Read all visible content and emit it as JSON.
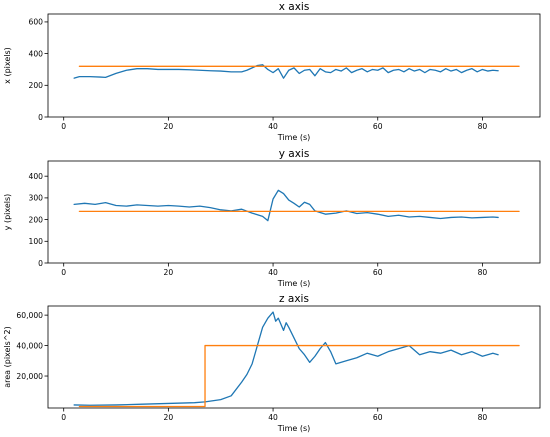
{
  "chart_data": [
    {
      "type": "line",
      "title": "x axis",
      "xlabel": "Time (s)",
      "ylabel": "x (pixels)",
      "xlim": [
        -3,
        91
      ],
      "ylim": [
        0,
        650
      ],
      "xticks": [
        0,
        20,
        40,
        60,
        80
      ],
      "yticks": [
        0,
        200,
        400,
        600
      ],
      "ytick_labels": [
        "0",
        "200",
        "400",
        "600"
      ],
      "grid": false,
      "series": [
        {
          "color": "#1f77b4",
          "x": [
            2,
            3,
            5,
            7,
            8,
            10,
            12,
            14,
            16,
            18,
            20,
            22,
            24,
            26,
            28,
            30,
            32,
            34,
            35,
            36,
            37,
            38,
            39,
            40,
            41,
            42,
            43,
            44,
            45,
            46,
            47,
            48,
            49,
            50,
            51,
            52,
            53,
            54,
            55,
            56,
            57,
            58,
            59,
            60,
            61,
            62,
            63,
            64,
            65,
            66,
            67,
            68,
            69,
            70,
            71,
            72,
            73,
            74,
            75,
            76,
            77,
            78,
            79,
            80,
            81,
            82,
            83
          ],
          "y": [
            245,
            255,
            255,
            252,
            250,
            275,
            295,
            305,
            305,
            300,
            300,
            300,
            298,
            295,
            292,
            290,
            285,
            285,
            295,
            310,
            325,
            330,
            300,
            280,
            305,
            245,
            295,
            310,
            275,
            295,
            300,
            260,
            305,
            285,
            280,
            300,
            290,
            310,
            280,
            295,
            305,
            285,
            300,
            295,
            310,
            280,
            295,
            300,
            285,
            305,
            290,
            300,
            280,
            300,
            295,
            285,
            305,
            290,
            300,
            280,
            295,
            305,
            285,
            300,
            290,
            295,
            292
          ]
        },
        {
          "color": "#ff7f0e",
          "x": [
            3,
            87
          ],
          "y": [
            320,
            320
          ]
        }
      ]
    },
    {
      "type": "line",
      "title": "y axis",
      "xlabel": "Time (s)",
      "ylabel": "y (pixels)",
      "xlim": [
        -3,
        91
      ],
      "ylim": [
        0,
        470
      ],
      "xticks": [
        0,
        20,
        40,
        60,
        80
      ],
      "yticks": [
        0,
        100,
        200,
        300,
        400
      ],
      "ytick_labels": [
        "0",
        "100",
        "200",
        "300",
        "400"
      ],
      "grid": false,
      "series": [
        {
          "color": "#1f77b4",
          "x": [
            2,
            4,
            6,
            8,
            10,
            12,
            14,
            16,
            18,
            20,
            22,
            24,
            26,
            28,
            30,
            32,
            34,
            36,
            38,
            39,
            40,
            41,
            42,
            43,
            44,
            45,
            46,
            47,
            48,
            50,
            52,
            54,
            56,
            58,
            60,
            62,
            64,
            66,
            68,
            70,
            72,
            74,
            76,
            78,
            80,
            82,
            83
          ],
          "y": [
            270,
            275,
            270,
            278,
            265,
            262,
            268,
            265,
            262,
            265,
            262,
            258,
            262,
            255,
            245,
            240,
            248,
            230,
            215,
            195,
            295,
            335,
            320,
            290,
            275,
            258,
            280,
            270,
            240,
            225,
            230,
            240,
            228,
            232,
            225,
            215,
            220,
            212,
            215,
            210,
            205,
            210,
            212,
            208,
            210,
            212,
            210
          ]
        },
        {
          "color": "#ff7f0e",
          "x": [
            3,
            87
          ],
          "y": [
            238,
            238
          ]
        }
      ]
    },
    {
      "type": "line",
      "title": "z axis",
      "xlabel": "Time (s)",
      "ylabel": "area (pixels^2)",
      "xlim": [
        -3,
        91
      ],
      "ylim": [
        -1000,
        66000
      ],
      "xticks": [
        0,
        20,
        40,
        60,
        80
      ],
      "yticks": [
        20000,
        40000,
        60000
      ],
      "ytick_labels": [
        "20,000",
        "40,000",
        "60,000"
      ],
      "grid": false,
      "series": [
        {
          "color": "#1f77b4",
          "x": [
            2,
            5,
            10,
            15,
            20,
            25,
            27,
            30,
            32,
            34,
            35,
            36,
            37,
            38,
            39,
            40,
            40.5,
            41,
            42,
            42.5,
            43,
            44,
            45,
            46,
            47,
            48,
            49,
            50,
            51,
            52,
            54,
            56,
            58,
            60,
            62,
            64,
            66,
            68,
            70,
            72,
            74,
            76,
            78,
            80,
            82,
            83
          ],
          "y": [
            1000,
            800,
            1000,
            1500,
            2000,
            2500,
            3000,
            4500,
            7000,
            16000,
            21000,
            28000,
            40000,
            52000,
            58000,
            62000,
            56000,
            58000,
            50000,
            55000,
            52000,
            45000,
            38000,
            34000,
            29000,
            33000,
            38000,
            42000,
            36000,
            28000,
            30000,
            32000,
            35000,
            33000,
            36000,
            38000,
            40000,
            34000,
            36000,
            35000,
            37000,
            34000,
            36000,
            33000,
            35000,
            34000
          ]
        },
        {
          "color": "#ff7f0e",
          "x": [
            3,
            27,
            27,
            87
          ],
          "y": [
            0,
            0,
            40000,
            40000
          ]
        }
      ]
    }
  ]
}
